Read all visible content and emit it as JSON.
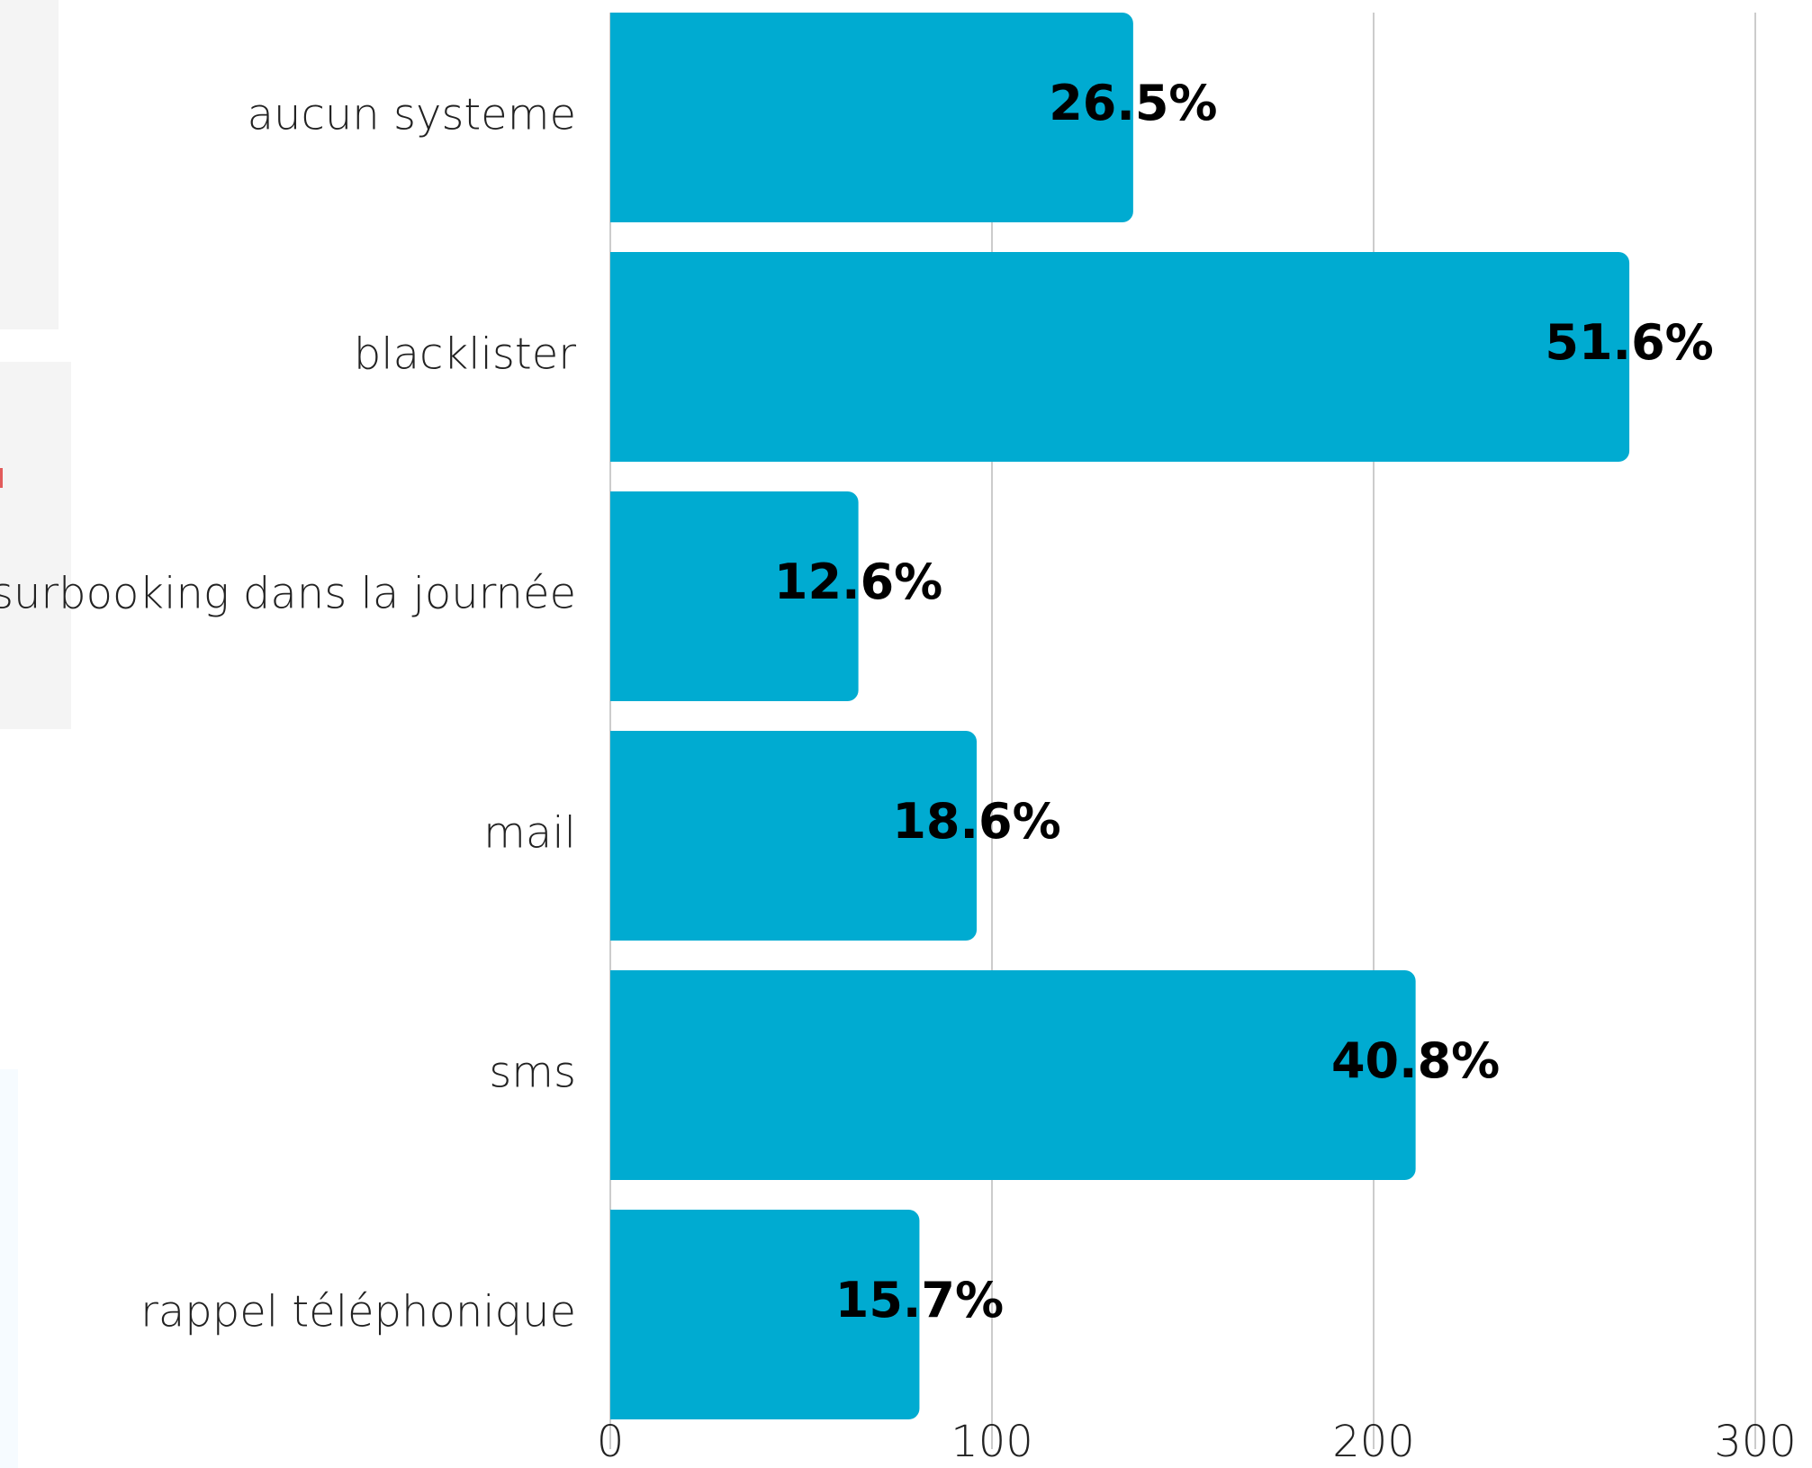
{
  "chart_data": {
    "type": "bar",
    "orientation": "horizontal",
    "categories": [
      "aucun systeme",
      "blacklister",
      "surbooking dans la journée",
      "mail",
      "sms",
      "rappel téléphonique"
    ],
    "values": [
      137,
      267,
      65,
      96,
      211,
      81
    ],
    "data_labels": [
      "26.5%",
      "51.6%",
      "12.6%",
      "18.6%",
      "40.8%",
      "15.7%"
    ],
    "x_ticks": [
      "0",
      "100",
      "200",
      "300"
    ],
    "xlim": [
      0,
      300
    ],
    "grid": true,
    "bar_color": "#00abd1",
    "title": "",
    "xlabel": "",
    "ylabel": ""
  }
}
